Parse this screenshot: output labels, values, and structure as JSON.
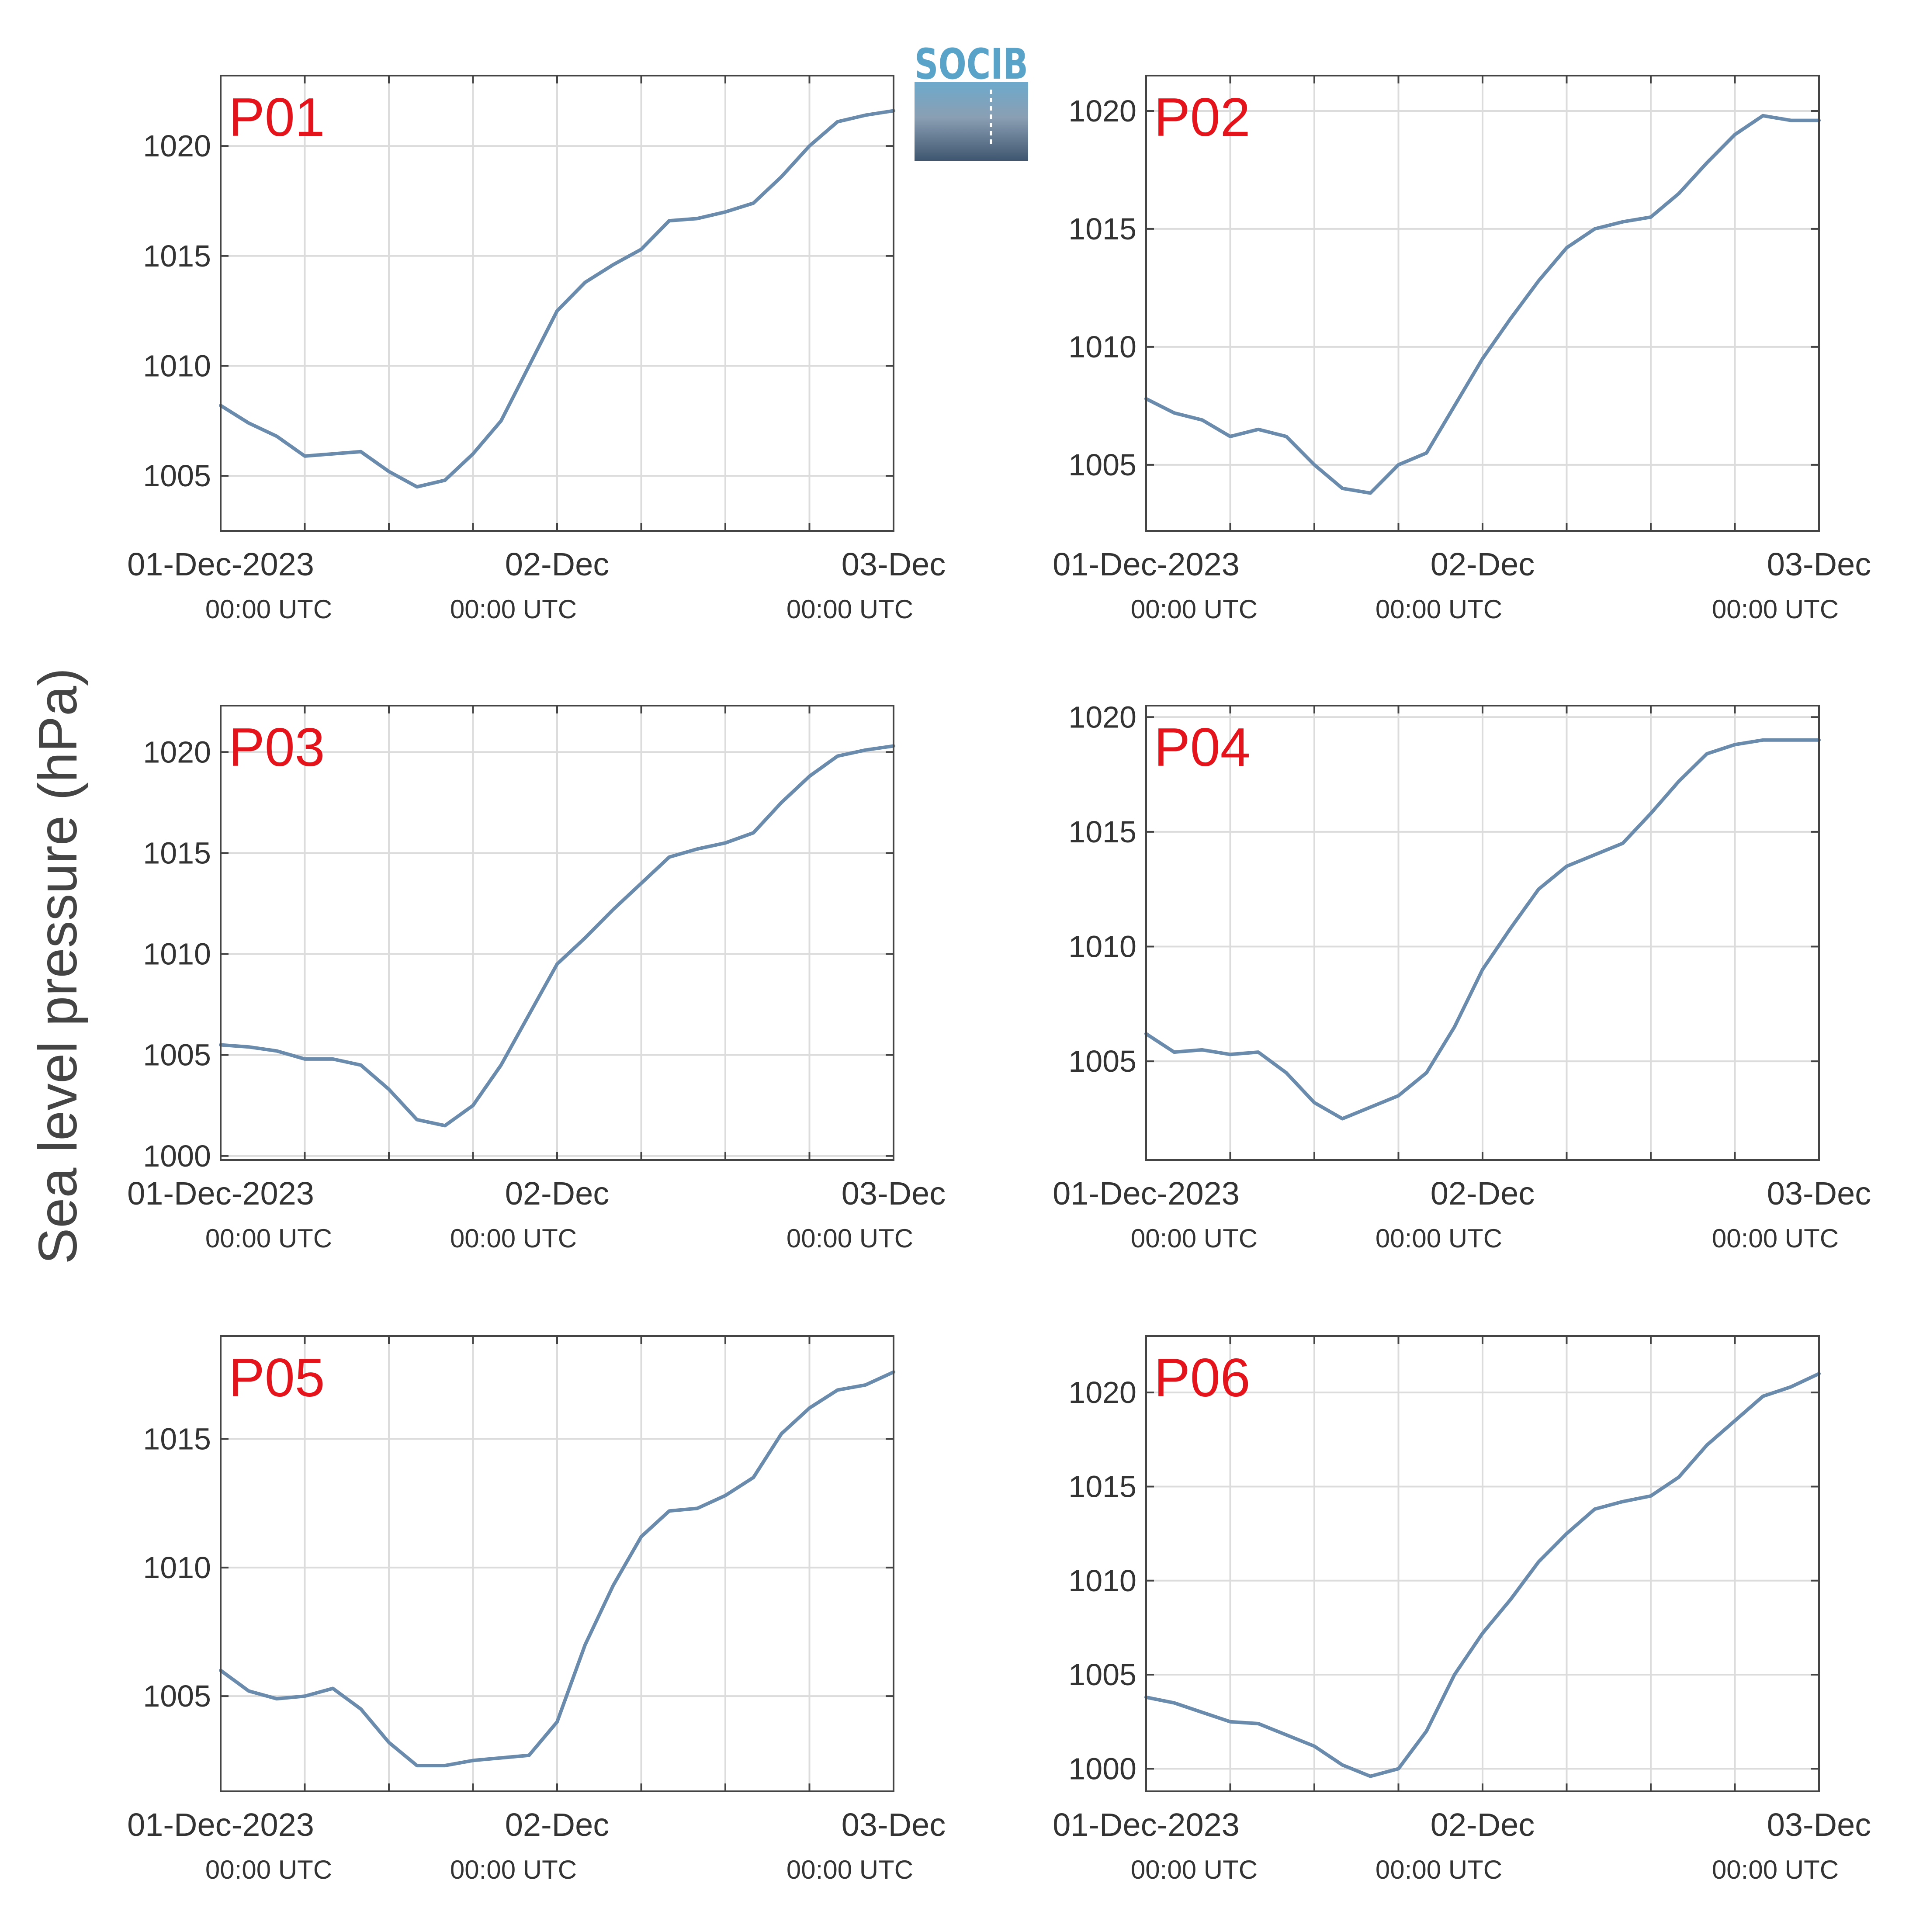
{
  "ylabel": "Sea level pressure (hPa)",
  "logo": {
    "text": "SOCIB"
  },
  "colors": {
    "line": "#6a8bac",
    "panel_label": "#e3141b",
    "grid": "#dcdcdc",
    "axis": "#444444"
  },
  "x_axis": {
    "ticks": [
      {
        "date": "01-Dec-2023",
        "time": "00:00 UTC"
      },
      {
        "date": "02-Dec",
        "time": "00:00 UTC"
      },
      {
        "date": "03-Dec",
        "time": "00:00 UTC"
      }
    ]
  },
  "chart_data": [
    {
      "type": "line",
      "label": "P01",
      "ylim": [
        1002.5,
        1023.2
      ],
      "yticks": [
        1005,
        1010,
        1015,
        1020
      ],
      "xlim": [
        "2023-12-01 00:00",
        "2023-12-03 00:00"
      ],
      "x": [
        "2023-12-01 00:00",
        "2023-12-01 02:00",
        "2023-12-01 04:00",
        "2023-12-01 06:00",
        "2023-12-01 08:00",
        "2023-12-01 10:00",
        "2023-12-01 12:00",
        "2023-12-01 14:00",
        "2023-12-01 16:00",
        "2023-12-01 18:00",
        "2023-12-01 20:00",
        "2023-12-01 22:00",
        "2023-12-02 00:00",
        "2023-12-02 02:00",
        "2023-12-02 04:00",
        "2023-12-02 06:00",
        "2023-12-02 08:00",
        "2023-12-02 10:00",
        "2023-12-02 12:00",
        "2023-12-02 14:00",
        "2023-12-02 16:00",
        "2023-12-02 18:00",
        "2023-12-02 20:00",
        "2023-12-02 22:00",
        "2023-12-03 00:00"
      ],
      "values": [
        1008.2,
        1007.4,
        1006.8,
        1005.9,
        1006.0,
        1006.1,
        1005.2,
        1004.5,
        1004.8,
        1006.0,
        1007.5,
        1010.0,
        1012.5,
        1013.8,
        1014.6,
        1015.3,
        1016.6,
        1016.7,
        1017.0,
        1017.4,
        1018.6,
        1020.0,
        1021.1,
        1021.4,
        1021.6
      ]
    },
    {
      "type": "line",
      "label": "P02",
      "ylim": [
        1002.2,
        1021.5
      ],
      "yticks": [
        1005,
        1010,
        1015,
        1020
      ],
      "xlim": [
        "2023-12-01 00:00",
        "2023-12-03 00:00"
      ],
      "x": [
        "2023-12-01 00:00",
        "2023-12-01 02:00",
        "2023-12-01 04:00",
        "2023-12-01 06:00",
        "2023-12-01 08:00",
        "2023-12-01 10:00",
        "2023-12-01 12:00",
        "2023-12-01 14:00",
        "2023-12-01 16:00",
        "2023-12-01 18:00",
        "2023-12-01 20:00",
        "2023-12-01 22:00",
        "2023-12-02 00:00",
        "2023-12-02 02:00",
        "2023-12-02 04:00",
        "2023-12-02 06:00",
        "2023-12-02 08:00",
        "2023-12-02 10:00",
        "2023-12-02 12:00",
        "2023-12-02 14:00",
        "2023-12-02 16:00",
        "2023-12-02 18:00",
        "2023-12-02 20:00",
        "2023-12-02 22:00",
        "2023-12-03 00:00"
      ],
      "values": [
        1007.8,
        1007.2,
        1006.9,
        1006.2,
        1006.5,
        1006.2,
        1005.0,
        1004.0,
        1003.8,
        1005.0,
        1005.5,
        1007.5,
        1009.5,
        1011.2,
        1012.8,
        1014.2,
        1015.0,
        1015.3,
        1015.5,
        1016.5,
        1017.8,
        1019.0,
        1019.8,
        1019.6,
        1019.6
      ]
    },
    {
      "type": "line",
      "label": "P03",
      "ylim": [
        999.8,
        1022.3
      ],
      "yticks": [
        1000,
        1005,
        1010,
        1015,
        1020
      ],
      "xlim": [
        "2023-12-01 00:00",
        "2023-12-03 00:00"
      ],
      "x": [
        "2023-12-01 00:00",
        "2023-12-01 02:00",
        "2023-12-01 04:00",
        "2023-12-01 06:00",
        "2023-12-01 08:00",
        "2023-12-01 10:00",
        "2023-12-01 12:00",
        "2023-12-01 14:00",
        "2023-12-01 16:00",
        "2023-12-01 18:00",
        "2023-12-01 20:00",
        "2023-12-01 22:00",
        "2023-12-02 00:00",
        "2023-12-02 02:00",
        "2023-12-02 04:00",
        "2023-12-02 06:00",
        "2023-12-02 08:00",
        "2023-12-02 10:00",
        "2023-12-02 12:00",
        "2023-12-02 14:00",
        "2023-12-02 16:00",
        "2023-12-02 18:00",
        "2023-12-02 20:00",
        "2023-12-02 22:00",
        "2023-12-03 00:00"
      ],
      "values": [
        1005.5,
        1005.4,
        1005.2,
        1004.8,
        1004.8,
        1004.5,
        1003.3,
        1001.8,
        1001.5,
        1002.5,
        1004.5,
        1007.0,
        1009.5,
        1010.8,
        1012.2,
        1013.5,
        1014.8,
        1015.2,
        1015.5,
        1016.0,
        1017.5,
        1018.8,
        1019.8,
        1020.1,
        1020.3
      ]
    },
    {
      "type": "line",
      "label": "P04",
      "ylim": [
        1000.7,
        1020.5
      ],
      "yticks": [
        1005,
        1010,
        1015,
        1020
      ],
      "xlim": [
        "2023-12-01 00:00",
        "2023-12-03 00:00"
      ],
      "x": [
        "2023-12-01 00:00",
        "2023-12-01 02:00",
        "2023-12-01 04:00",
        "2023-12-01 06:00",
        "2023-12-01 08:00",
        "2023-12-01 10:00",
        "2023-12-01 12:00",
        "2023-12-01 14:00",
        "2023-12-01 16:00",
        "2023-12-01 18:00",
        "2023-12-01 20:00",
        "2023-12-01 22:00",
        "2023-12-02 00:00",
        "2023-12-02 02:00",
        "2023-12-02 04:00",
        "2023-12-02 06:00",
        "2023-12-02 08:00",
        "2023-12-02 10:00",
        "2023-12-02 12:00",
        "2023-12-02 14:00",
        "2023-12-02 16:00",
        "2023-12-02 18:00",
        "2023-12-02 20:00",
        "2023-12-02 22:00",
        "2023-12-03 00:00"
      ],
      "values": [
        1006.2,
        1005.4,
        1005.5,
        1005.3,
        1005.4,
        1004.5,
        1003.2,
        1002.5,
        1003.0,
        1003.5,
        1004.5,
        1006.5,
        1009.0,
        1010.8,
        1012.5,
        1013.5,
        1014.0,
        1014.5,
        1015.8,
        1017.2,
        1018.4,
        1018.8,
        1019.0,
        1019.0,
        1019.0
      ]
    },
    {
      "type": "line",
      "label": "P05",
      "ylim": [
        1001.3,
        1019.0
      ],
      "yticks": [
        1005,
        1010,
        1015
      ],
      "xlim": [
        "2023-12-01 00:00",
        "2023-12-03 00:00"
      ],
      "x": [
        "2023-12-01 00:00",
        "2023-12-01 02:00",
        "2023-12-01 04:00",
        "2023-12-01 06:00",
        "2023-12-01 08:00",
        "2023-12-01 10:00",
        "2023-12-01 12:00",
        "2023-12-01 14:00",
        "2023-12-01 16:00",
        "2023-12-01 18:00",
        "2023-12-01 20:00",
        "2023-12-01 22:00",
        "2023-12-02 00:00",
        "2023-12-02 02:00",
        "2023-12-02 04:00",
        "2023-12-02 06:00",
        "2023-12-02 08:00",
        "2023-12-02 10:00",
        "2023-12-02 12:00",
        "2023-12-02 14:00",
        "2023-12-02 16:00",
        "2023-12-02 18:00",
        "2023-12-02 20:00",
        "2023-12-02 22:00",
        "2023-12-03 00:00"
      ],
      "values": [
        1006.0,
        1005.2,
        1004.9,
        1005.0,
        1005.3,
        1004.5,
        1003.2,
        1002.3,
        1002.3,
        1002.5,
        1002.6,
        1002.7,
        1004.0,
        1007.0,
        1009.3,
        1011.2,
        1012.2,
        1012.3,
        1012.8,
        1013.5,
        1015.2,
        1016.2,
        1016.9,
        1017.1,
        1017.6
      ]
    },
    {
      "type": "line",
      "label": "P06",
      "ylim": [
        998.8,
        1023.0
      ],
      "yticks": [
        1000,
        1005,
        1010,
        1015,
        1020
      ],
      "xlim": [
        "2023-12-01 00:00",
        "2023-12-03 00:00"
      ],
      "x": [
        "2023-12-01 00:00",
        "2023-12-01 02:00",
        "2023-12-01 04:00",
        "2023-12-01 06:00",
        "2023-12-01 08:00",
        "2023-12-01 10:00",
        "2023-12-01 12:00",
        "2023-12-01 14:00",
        "2023-12-01 16:00",
        "2023-12-01 18:00",
        "2023-12-01 20:00",
        "2023-12-01 22:00",
        "2023-12-02 00:00",
        "2023-12-02 02:00",
        "2023-12-02 04:00",
        "2023-12-02 06:00",
        "2023-12-02 08:00",
        "2023-12-02 10:00",
        "2023-12-02 12:00",
        "2023-12-02 14:00",
        "2023-12-02 16:00",
        "2023-12-02 18:00",
        "2023-12-02 20:00",
        "2023-12-02 22:00",
        "2023-12-03 00:00"
      ],
      "values": [
        1003.8,
        1003.5,
        1003.0,
        1002.5,
        1002.4,
        1001.8,
        1001.2,
        1000.2,
        999.6,
        1000.0,
        1002.0,
        1005.0,
        1007.2,
        1009.0,
        1011.0,
        1012.5,
        1013.8,
        1014.2,
        1014.5,
        1015.5,
        1017.2,
        1018.5,
        1019.8,
        1020.3,
        1021.0
      ]
    }
  ]
}
